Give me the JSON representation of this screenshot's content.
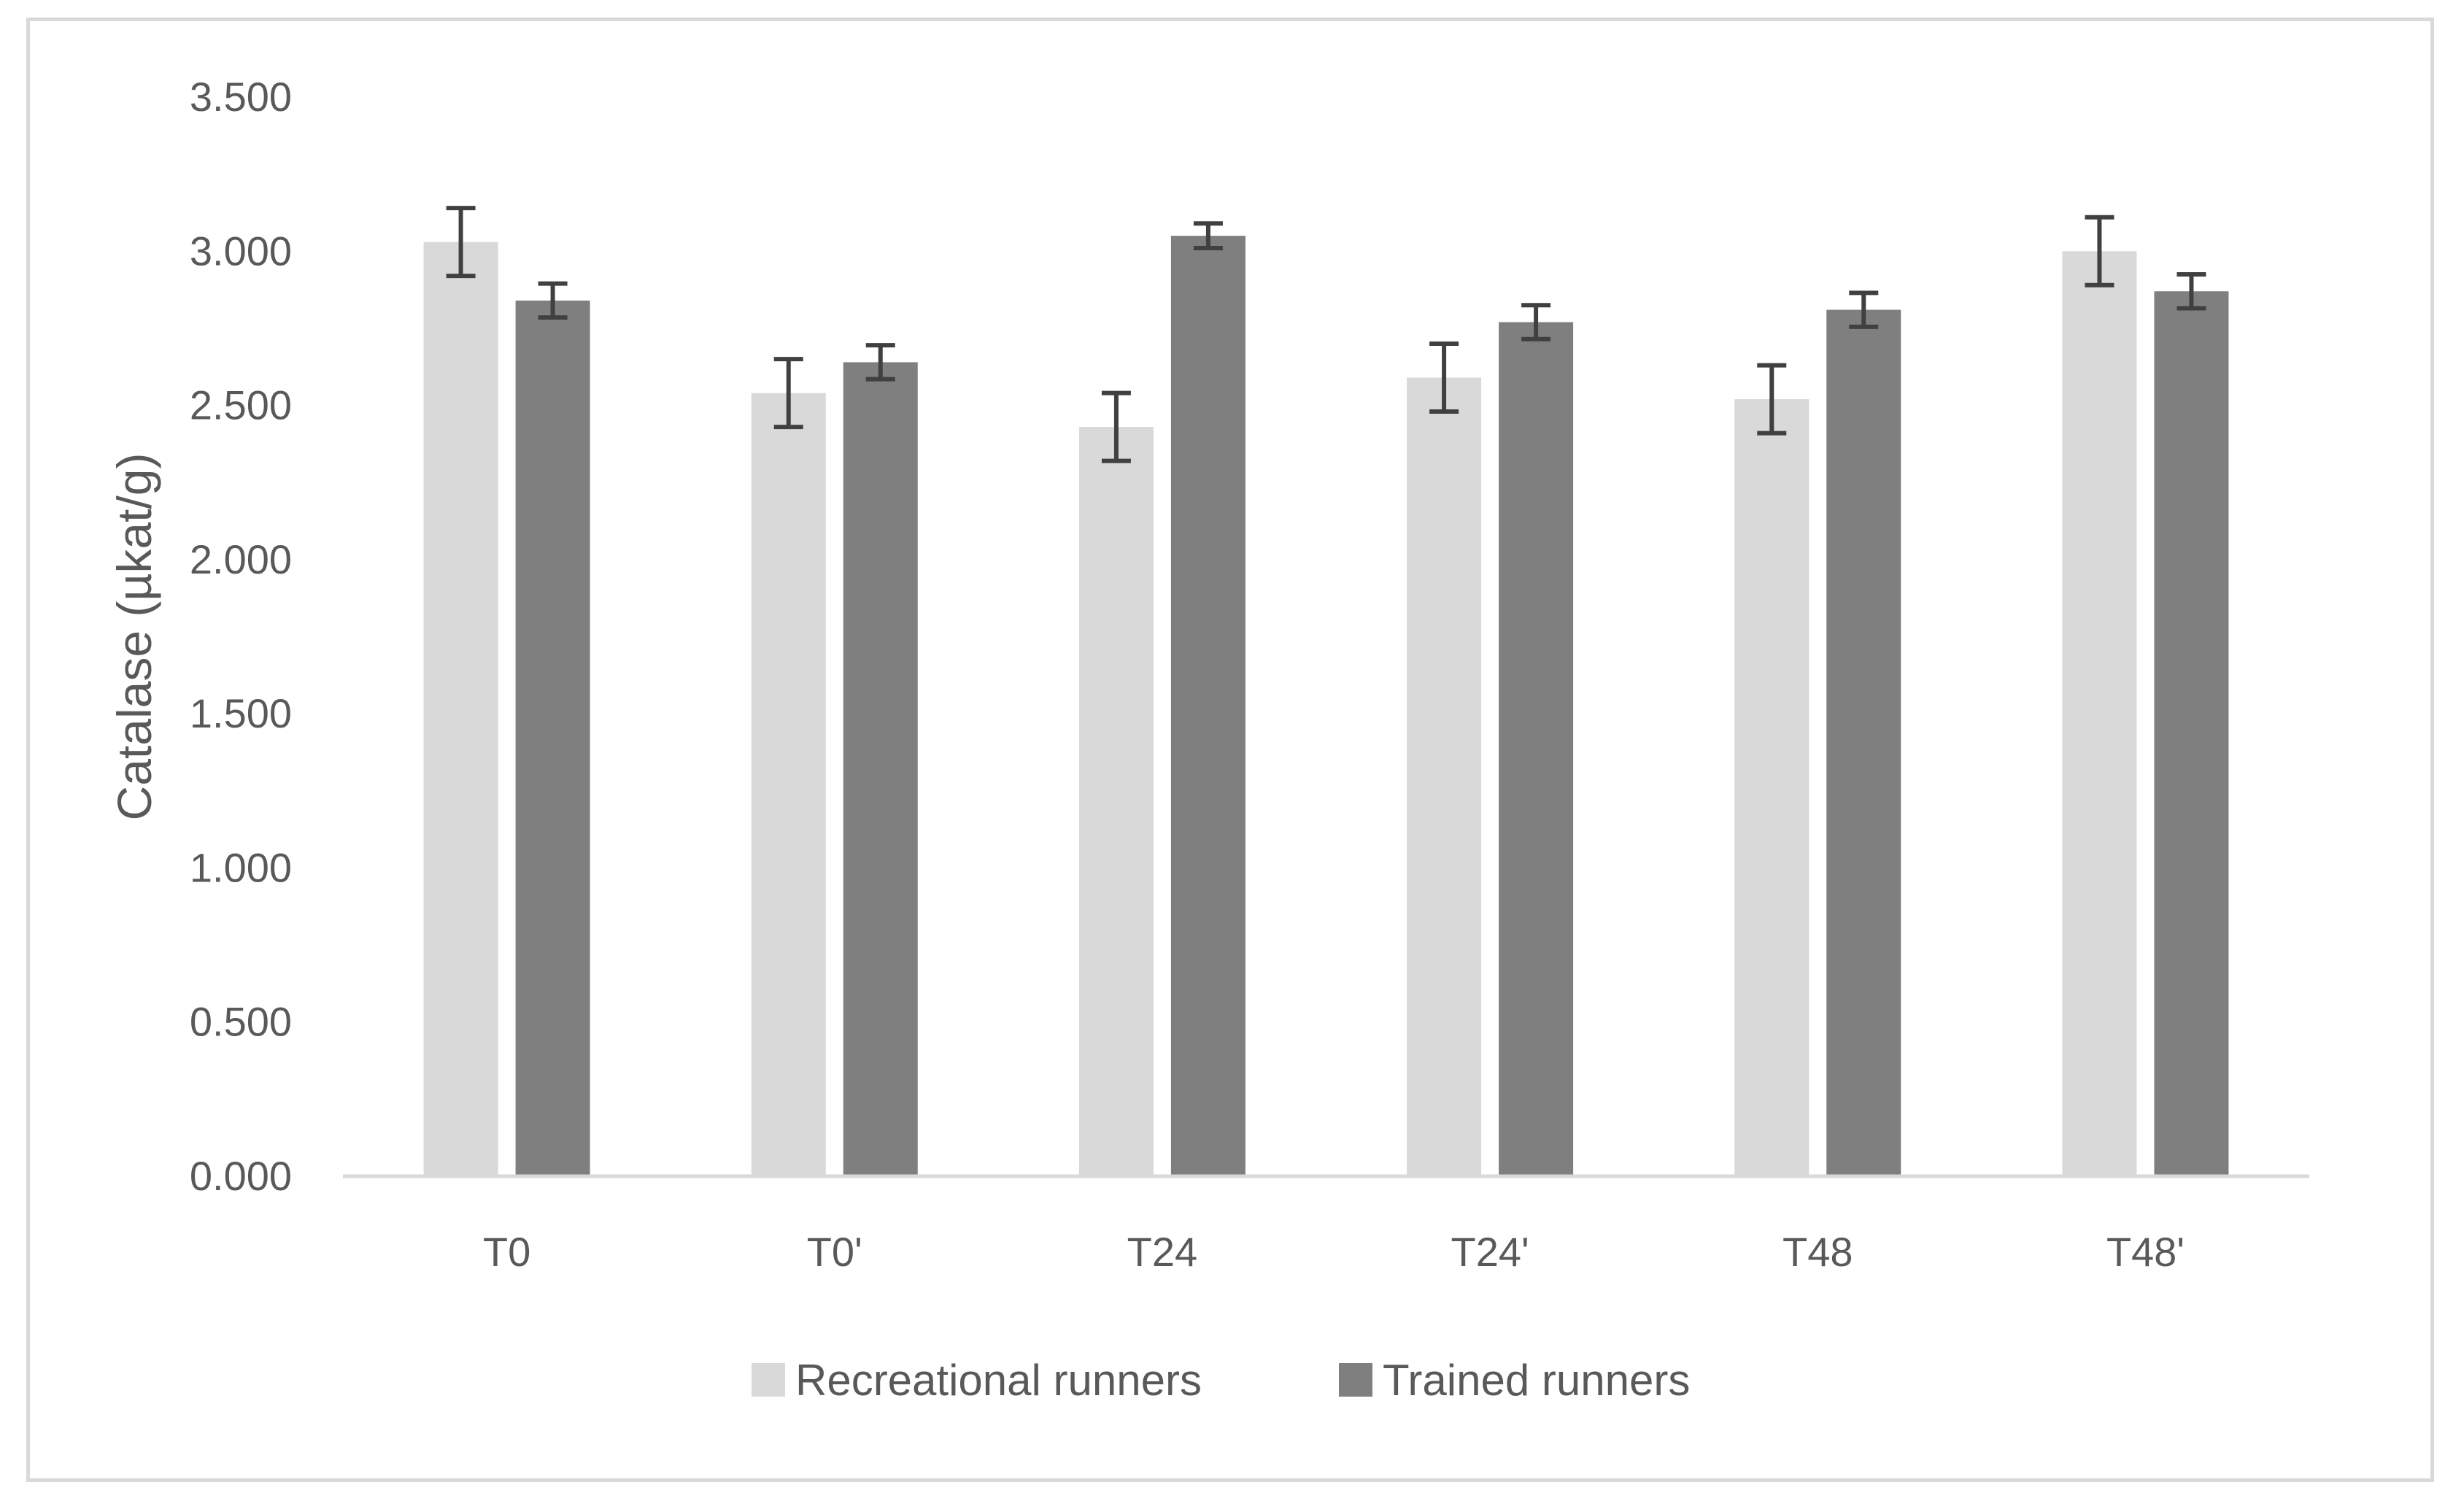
{
  "chart_data": {
    "type": "bar",
    "title": "",
    "xlabel": "",
    "ylabel": "Catalase (µkat/g)",
    "ylim": [
      0,
      3.5
    ],
    "yticks": [
      "0.000",
      "0.500",
      "1.000",
      "1.500",
      "2.000",
      "2.500",
      "3.000",
      "3.500"
    ],
    "ytick_values": [
      0,
      0.5,
      1.0,
      1.5,
      2.0,
      2.5,
      3.0,
      3.5
    ],
    "grid": false,
    "legend_position": "bottom",
    "categories": [
      "T0",
      "T0'",
      "T24",
      "T24'",
      "T48",
      "T48'"
    ],
    "series": [
      {
        "name": "Recreational runners",
        "color": "#d9d9d9",
        "values": [
          3.03,
          2.54,
          2.43,
          2.59,
          2.52,
          3.0
        ],
        "errors": [
          0.11,
          0.11,
          0.11,
          0.11,
          0.11,
          0.11
        ]
      },
      {
        "name": "Trained runners",
        "color": "#7f7f7f",
        "values": [
          2.84,
          2.64,
          3.05,
          2.77,
          2.81,
          2.87
        ],
        "errors": [
          0.055,
          0.055,
          0.04,
          0.055,
          0.055,
          0.055
        ]
      }
    ],
    "error_bar_color": "#404040",
    "axis_color": "#d9d9d9"
  }
}
